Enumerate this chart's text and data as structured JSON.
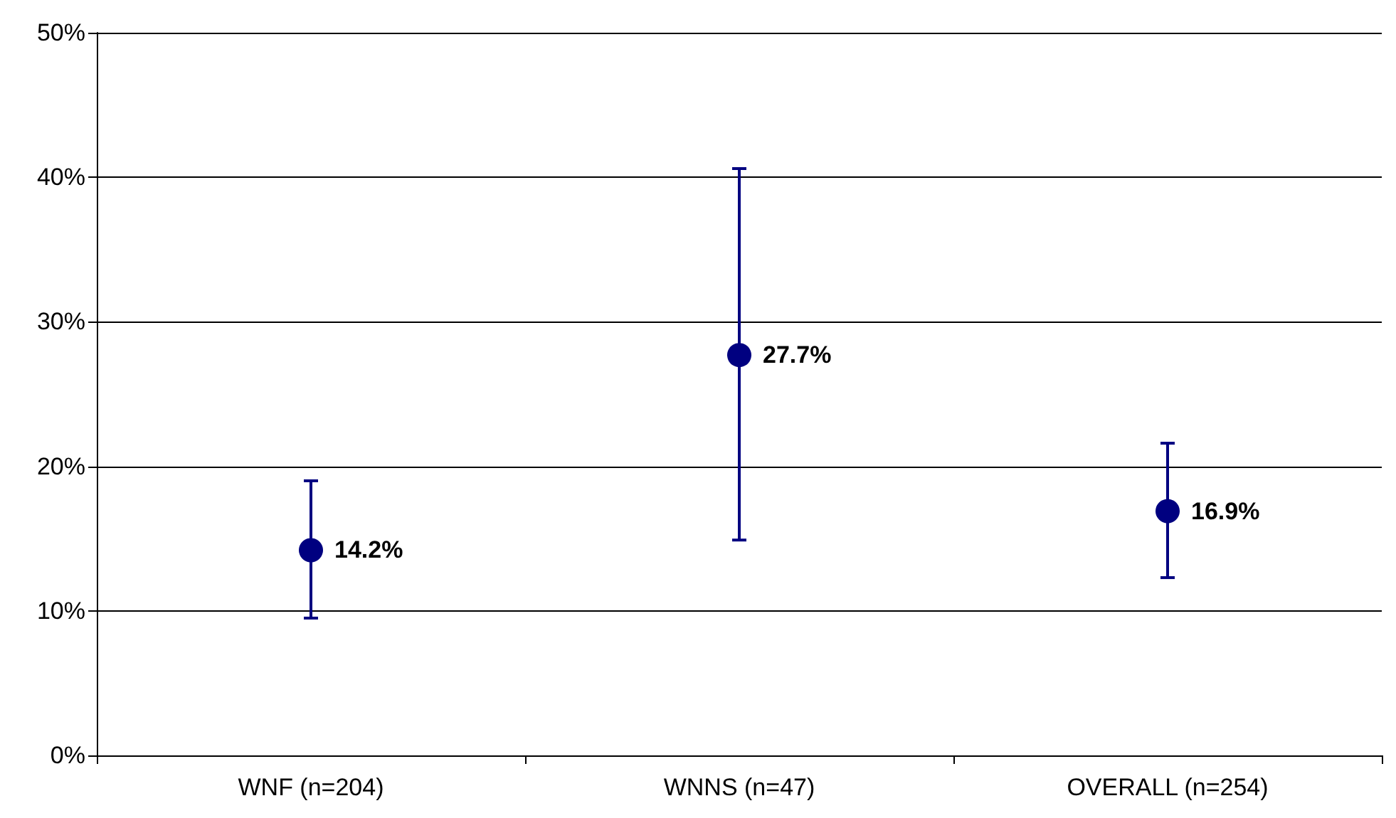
{
  "chart_data": {
    "type": "scatter",
    "categories": [
      "WNF (n=204)",
      "WNNS (n=47)",
      "OVERALL (n=254)"
    ],
    "values": [
      14.2,
      27.7,
      16.9
    ],
    "errors": [
      [
        9.5,
        19.0
      ],
      [
        14.9,
        40.6
      ],
      [
        12.3,
        21.6
      ]
    ],
    "value_labels": [
      "14.2%",
      "27.7%",
      "16.9%"
    ],
    "color": "#000080",
    "marker": "circle",
    "grid": "y",
    "ylim": [
      0,
      50
    ],
    "yticks": [
      {
        "value": 0,
        "label": "0%"
      },
      {
        "value": 10,
        "label": "10%"
      },
      {
        "value": 20,
        "label": "20%"
      },
      {
        "value": 30,
        "label": "30%"
      },
      {
        "value": 40,
        "label": "40%"
      },
      {
        "value": 50,
        "label": "50%"
      }
    ]
  }
}
